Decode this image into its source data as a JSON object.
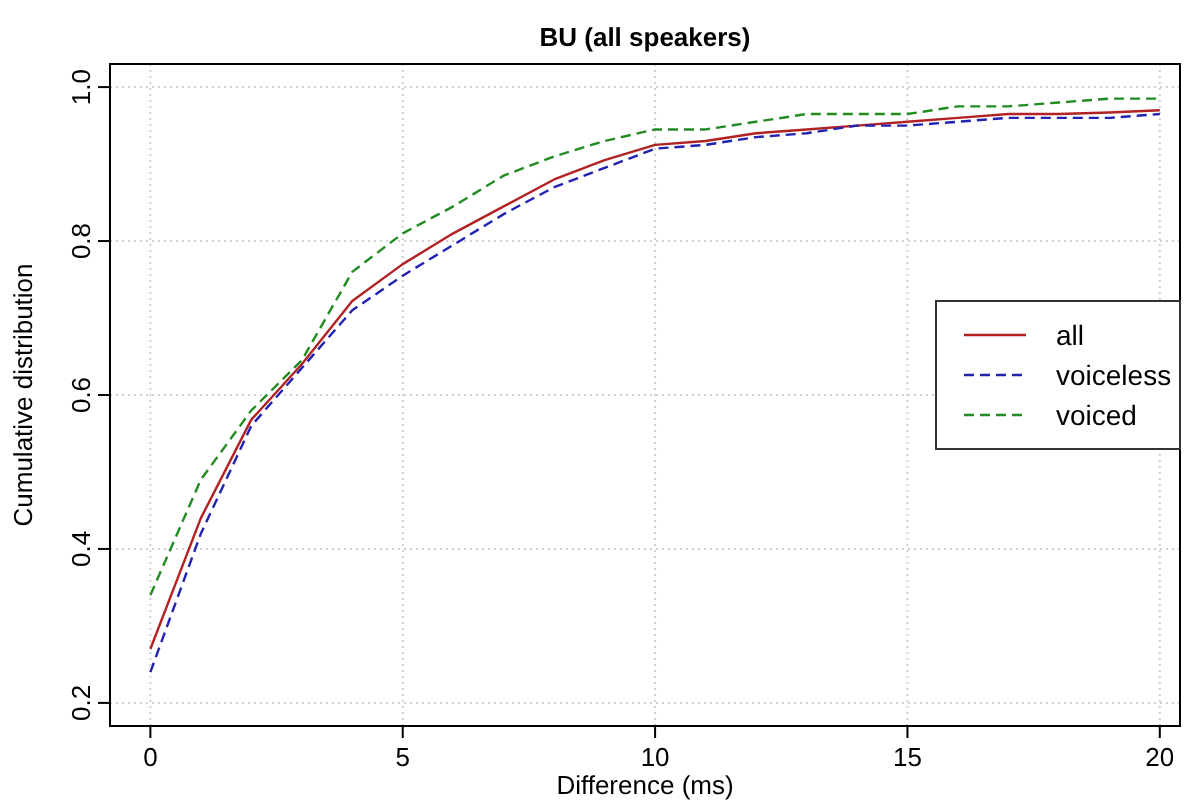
{
  "chart_data": {
    "type": "line",
    "title": "BU (all speakers)",
    "xlabel": "Difference (ms)",
    "ylabel": "Cumulative distribution",
    "x": [
      0,
      1,
      2,
      3,
      4,
      5,
      6,
      7,
      8,
      9,
      10,
      11,
      12,
      13,
      14,
      15,
      16,
      17,
      18,
      19,
      20
    ],
    "series": [
      {
        "name": "all",
        "color": "#b22222",
        "line_style": "solid",
        "values": [
          0.27,
          0.44,
          0.568,
          0.64,
          0.722,
          0.77,
          0.81,
          0.845,
          0.88,
          0.905,
          0.925,
          0.93,
          0.94,
          0.945,
          0.95,
          0.955,
          0.96,
          0.965,
          0.965,
          0.967,
          0.97
        ]
      },
      {
        "name": "voiceless",
        "color": "#2222b2",
        "line_style": "dashed",
        "values": [
          0.24,
          0.42,
          0.56,
          0.635,
          0.71,
          0.755,
          0.795,
          0.835,
          0.87,
          0.895,
          0.92,
          0.925,
          0.935,
          0.94,
          0.95,
          0.95,
          0.955,
          0.96,
          0.96,
          0.96,
          0.965
        ]
      },
      {
        "name": "voiced",
        "color": "#228b22",
        "line_style": "dashed",
        "values": [
          0.34,
          0.49,
          0.58,
          0.645,
          0.76,
          0.81,
          0.845,
          0.885,
          0.91,
          0.93,
          0.945,
          0.945,
          0.955,
          0.965,
          0.965,
          0.965,
          0.975,
          0.975,
          0.98,
          0.985,
          0.985
        ]
      }
    ],
    "xlim": [
      -0.8,
      20.4
    ],
    "xticks": [
      0,
      5,
      10,
      15,
      20
    ],
    "ylim": [
      0.17,
      1.03
    ],
    "yticks": [
      {
        "value": 0.2,
        "label": "0.2"
      },
      {
        "value": 0.4,
        "label": "0.4"
      },
      {
        "value": 0.6,
        "label": "0.6"
      },
      {
        "value": 0.8,
        "label": "0.8"
      },
      {
        "value": 1.0,
        "label": "1.0"
      }
    ],
    "grid": true,
    "legend": "right",
    "marker": "none"
  }
}
